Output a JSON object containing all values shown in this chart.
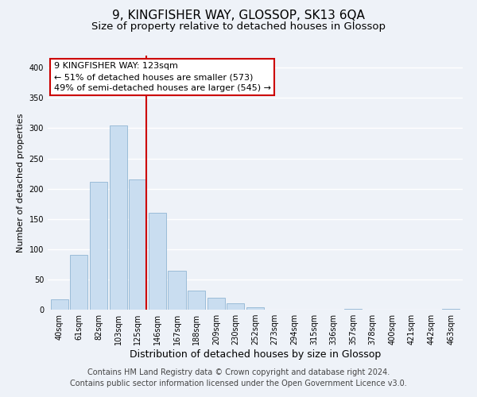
{
  "title": "9, KINGFISHER WAY, GLOSSOP, SK13 6QA",
  "subtitle": "Size of property relative to detached houses in Glossop",
  "xlabel": "Distribution of detached houses by size in Glossop",
  "ylabel": "Number of detached properties",
  "bar_labels": [
    "40sqm",
    "61sqm",
    "82sqm",
    "103sqm",
    "125sqm",
    "146sqm",
    "167sqm",
    "188sqm",
    "209sqm",
    "230sqm",
    "252sqm",
    "273sqm",
    "294sqm",
    "315sqm",
    "336sqm",
    "357sqm",
    "378sqm",
    "400sqm",
    "421sqm",
    "442sqm",
    "463sqm"
  ],
  "bar_values": [
    17,
    90,
    211,
    304,
    215,
    160,
    64,
    31,
    20,
    10,
    4,
    0,
    0,
    0,
    0,
    1,
    0,
    0,
    0,
    0,
    1
  ],
  "bar_color": "#c9ddf0",
  "bar_edge_color": "#9bbcd8",
  "vline_color": "#cc0000",
  "vline_bar_index": 4,
  "ylim": [
    0,
    420
  ],
  "yticks": [
    0,
    50,
    100,
    150,
    200,
    250,
    300,
    350,
    400
  ],
  "annotation_title": "9 KINGFISHER WAY: 123sqm",
  "annotation_line1": "← 51% of detached houses are smaller (573)",
  "annotation_line2": "49% of semi-detached houses are larger (545) →",
  "annotation_box_facecolor": "#ffffff",
  "annotation_box_edgecolor": "#cc0000",
  "footer_line1": "Contains HM Land Registry data © Crown copyright and database right 2024.",
  "footer_line2": "Contains public sector information licensed under the Open Government Licence v3.0.",
  "background_color": "#eef2f8",
  "grid_color": "#ffffff",
  "title_fontsize": 11,
  "subtitle_fontsize": 9.5,
  "tick_fontsize": 7,
  "xlabel_fontsize": 9,
  "ylabel_fontsize": 8,
  "footer_fontsize": 7,
  "annotation_fontsize": 8
}
